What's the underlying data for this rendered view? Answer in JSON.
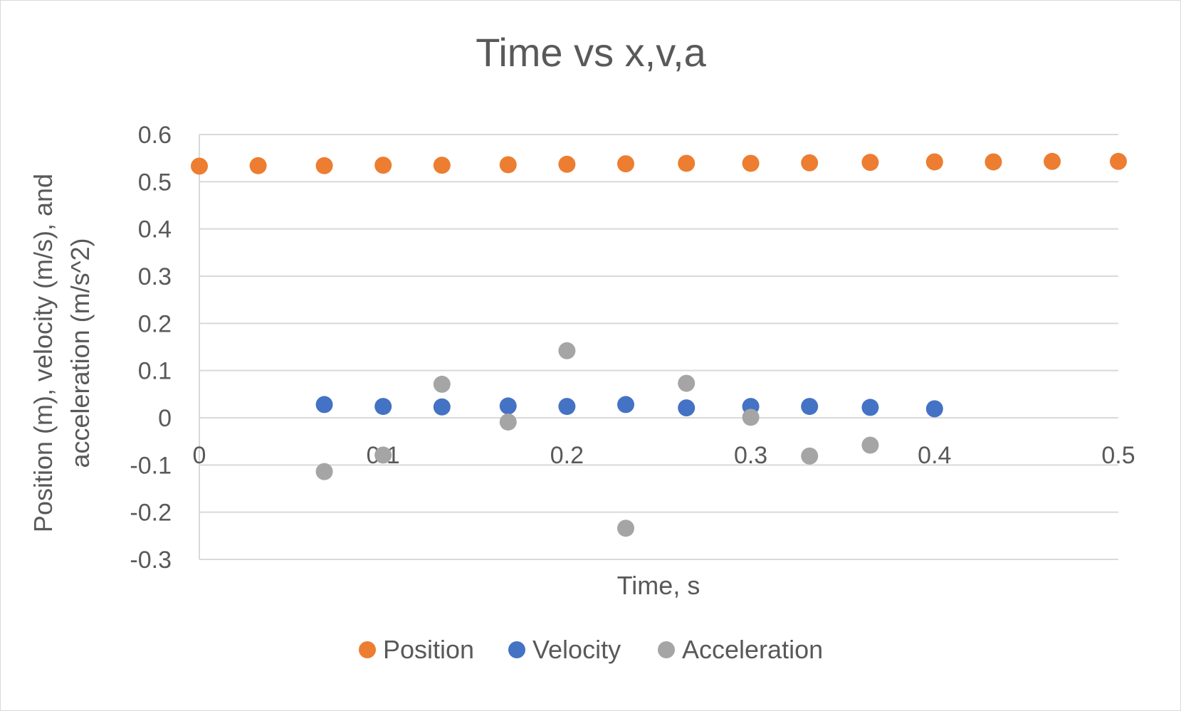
{
  "chart_data": {
    "type": "scatter",
    "title": "Time vs x,v,a",
    "xlabel": "Time, s",
    "ylabel": "Position (m), velocity (m/s), and acceleration (m/s^2)",
    "xlim": [
      0,
      0.5
    ],
    "ylim": [
      -0.3,
      0.6
    ],
    "x_ticks": [
      "0",
      "0.1",
      "0.2",
      "0.3",
      "0.4",
      "0.5"
    ],
    "y_ticks": [
      "0.6",
      "0.5",
      "0.4",
      "0.3",
      "0.2",
      "0.1",
      "0",
      "-0.1",
      "-0.2",
      "-0.3"
    ],
    "grid": true,
    "legend_position": "bottom",
    "series": [
      {
        "name": "Position",
        "color": "#ED7D31",
        "points": [
          [
            0.0,
            0.533
          ],
          [
            0.032,
            0.534
          ],
          [
            0.068,
            0.534
          ],
          [
            0.1,
            0.535
          ],
          [
            0.132,
            0.535
          ],
          [
            0.168,
            0.536
          ],
          [
            0.2,
            0.537
          ],
          [
            0.232,
            0.538
          ],
          [
            0.265,
            0.539
          ],
          [
            0.3,
            0.539
          ],
          [
            0.332,
            0.54
          ],
          [
            0.365,
            0.541
          ],
          [
            0.4,
            0.542
          ],
          [
            0.432,
            0.542
          ],
          [
            0.464,
            0.543
          ],
          [
            0.5,
            0.543
          ]
        ]
      },
      {
        "name": "Velocity",
        "color": "#4472C4",
        "points": [
          [
            0.068,
            0.028
          ],
          [
            0.1,
            0.024
          ],
          [
            0.132,
            0.023
          ],
          [
            0.168,
            0.025
          ],
          [
            0.2,
            0.024
          ],
          [
            0.232,
            0.028
          ],
          [
            0.265,
            0.021
          ],
          [
            0.3,
            0.024
          ],
          [
            0.332,
            0.024
          ],
          [
            0.365,
            0.022
          ],
          [
            0.4,
            0.019
          ]
        ]
      },
      {
        "name": "Acceleration",
        "color": "#A5A5A5",
        "points": [
          [
            0.068,
            -0.114
          ],
          [
            0.1,
            -0.079
          ],
          [
            0.132,
            0.071
          ],
          [
            0.168,
            -0.009
          ],
          [
            0.2,
            0.142
          ],
          [
            0.232,
            -0.234
          ],
          [
            0.265,
            0.073
          ],
          [
            0.3,
            0.001
          ],
          [
            0.332,
            -0.081
          ],
          [
            0.365,
            -0.058
          ]
        ]
      }
    ]
  }
}
